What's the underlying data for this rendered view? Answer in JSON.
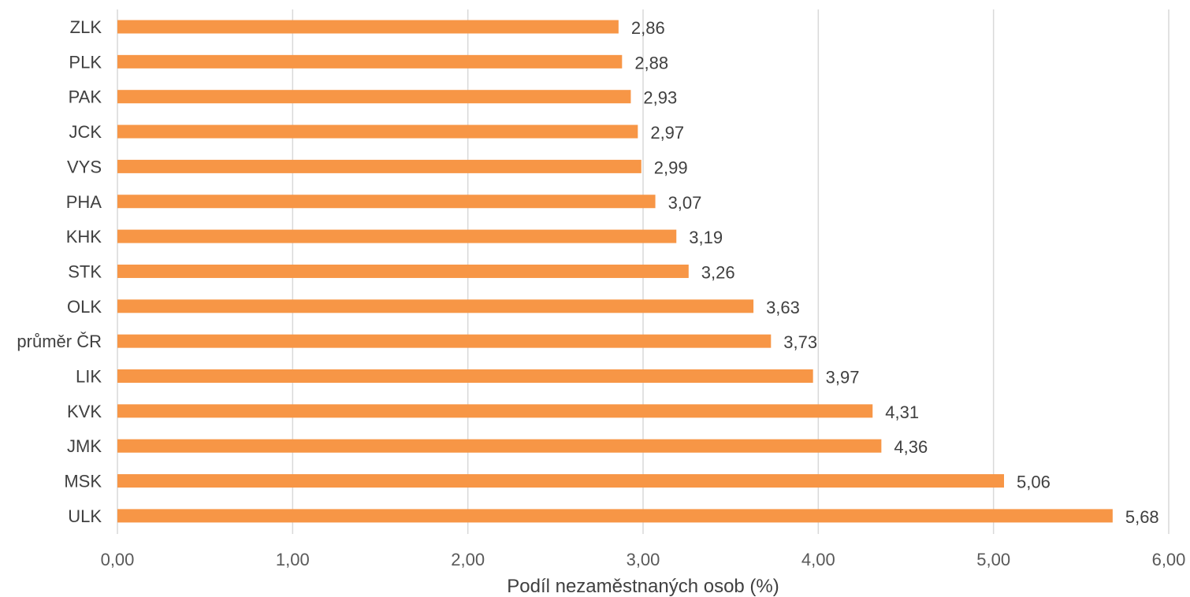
{
  "chart_data": {
    "type": "bar",
    "orientation": "horizontal",
    "categories": [
      "ZLK",
      "PLK",
      "PAK",
      "JCK",
      "VYS",
      "PHA",
      "KHK",
      "STK",
      "OLK",
      "průměr ČR",
      "LIK",
      "KVK",
      "JMK",
      "MSK",
      "ULK"
    ],
    "values": [
      2.86,
      2.88,
      2.93,
      2.97,
      2.99,
      3.07,
      3.19,
      3.26,
      3.63,
      3.73,
      3.97,
      4.31,
      4.36,
      5.06,
      5.68
    ],
    "data_labels": [
      "2,86",
      "2,88",
      "2,93",
      "2,97",
      "2,99",
      "3,07",
      "3,19",
      "3,26",
      "3,63",
      "3,73",
      "3,97",
      "4,31",
      "4,36",
      "5,06",
      "5,68"
    ],
    "xlabel": "Podíl nezaměstnaných osob (%)",
    "ylabel": "",
    "xlim": [
      0,
      6
    ],
    "x_ticks": [
      0,
      1,
      2,
      3,
      4,
      5,
      6
    ],
    "x_tick_labels": [
      "0,00",
      "1,00",
      "2,00",
      "3,00",
      "4,00",
      "5,00",
      "6,00"
    ],
    "grid": "vertical",
    "legend": "none",
    "bar_color": "#f79646",
    "grid_color": "#d9d9d9"
  }
}
